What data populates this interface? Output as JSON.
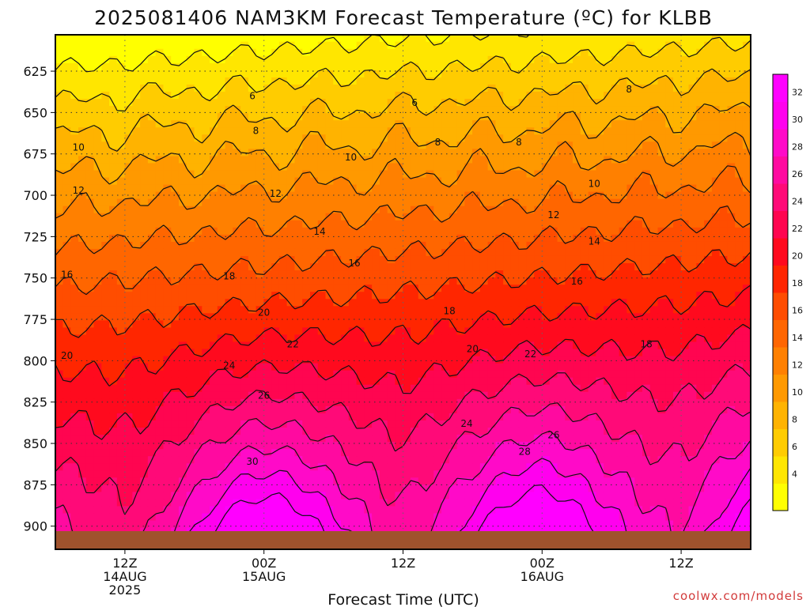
{
  "title": "2025081406 NAM3KM Forecast Temperature (ºC) for KLBB",
  "credit": "coolwx.com/models",
  "colors": {
    "ground": "#a0522d",
    "frame": "#000000",
    "grid": "#333333"
  },
  "chart_data": {
    "type": "contour",
    "title": "2025081406 NAM3KM Forecast Temperature (ºC) for KLBB",
    "xlabel": "Forecast Time (UTC)",
    "ylabel": "",
    "x_range_hours_from_start": [
      0,
      60
    ],
    "y_axis": {
      "scale": "pressure (hPa), increasing downward",
      "range": [
        603,
        914
      ],
      "ticks": [
        "625",
        "650",
        "675",
        "700",
        "725",
        "750",
        "775",
        "800",
        "825",
        "850",
        "875",
        "900"
      ]
    },
    "x_ticks": [
      {
        "lines": [
          "12Z",
          "14AUG",
          "2025"
        ],
        "hour": 6
      },
      {
        "lines": [
          "00Z",
          "15AUG"
        ],
        "hour": 18
      },
      {
        "lines": [
          "12Z"
        ],
        "hour": 30
      },
      {
        "lines": [
          "00Z",
          "16AUG"
        ],
        "hour": 42
      },
      {
        "lines": [
          "12Z"
        ],
        "hour": 54
      }
    ],
    "colorbar": {
      "levels": [
        2,
        4,
        6,
        8,
        10,
        12,
        14,
        16,
        18,
        20,
        22,
        24,
        26,
        28,
        30,
        32,
        34
      ],
      "labels": [
        "4",
        "6",
        "8",
        "10",
        "12",
        "14",
        "16",
        "18",
        "20",
        "22",
        "24",
        "26",
        "28",
        "30",
        "32"
      ],
      "colors": [
        "#ffff00",
        "#ffe600",
        "#ffcc00",
        "#ffb300",
        "#ff9900",
        "#ff8000",
        "#ff6600",
        "#ff4d00",
        "#ff2600",
        "#ff0a1e",
        "#ff0550",
        "#ff0a78",
        "#ff0aa0",
        "#ff0ac8",
        "#ff00ee",
        "#ff00ff"
      ]
    },
    "contour_levels": [
      4,
      6,
      8,
      10,
      12,
      14,
      16,
      18,
      20,
      22,
      24,
      26,
      28,
      30,
      32
    ],
    "grid": true,
    "surface_pressure_hPa": 903,
    "contour_labels": [
      {
        "text": "6",
        "hour": 17.0,
        "p": 640
      },
      {
        "text": "6",
        "hour": 31.0,
        "p": 644
      },
      {
        "text": "8",
        "hour": 17.3,
        "p": 661
      },
      {
        "text": "8",
        "hour": 33.0,
        "p": 668
      },
      {
        "text": "8",
        "hour": 40.0,
        "p": 668
      },
      {
        "text": "8",
        "hour": 49.5,
        "p": 636
      },
      {
        "text": "10",
        "hour": 2.0,
        "p": 671
      },
      {
        "text": "10",
        "hour": 25.5,
        "p": 677
      },
      {
        "text": "10",
        "hour": 46.5,
        "p": 693
      },
      {
        "text": "12",
        "hour": 2.0,
        "p": 697
      },
      {
        "text": "12",
        "hour": 19.0,
        "p": 699
      },
      {
        "text": "12",
        "hour": 43.0,
        "p": 712
      },
      {
        "text": "14",
        "hour": 22.8,
        "p": 722
      },
      {
        "text": "14",
        "hour": 46.5,
        "p": 728
      },
      {
        "text": "16",
        "hour": 1.0,
        "p": 748
      },
      {
        "text": "16",
        "hour": 25.8,
        "p": 741
      },
      {
        "text": "16",
        "hour": 45.0,
        "p": 752
      },
      {
        "text": "18",
        "hour": 15.0,
        "p": 749
      },
      {
        "text": "18",
        "hour": 34.0,
        "p": 770
      },
      {
        "text": "18",
        "hour": 51.0,
        "p": 790
      },
      {
        "text": "20",
        "hour": 18.0,
        "p": 771
      },
      {
        "text": "20",
        "hour": 36.0,
        "p": 793
      },
      {
        "text": "20",
        "hour": 1.0,
        "p": 797
      },
      {
        "text": "22",
        "hour": 20.5,
        "p": 790
      },
      {
        "text": "22",
        "hour": 41.0,
        "p": 796
      },
      {
        "text": "24",
        "hour": 15.0,
        "p": 803
      },
      {
        "text": "24",
        "hour": 35.5,
        "p": 838
      },
      {
        "text": "26",
        "hour": 18.0,
        "p": 821
      },
      {
        "text": "26",
        "hour": 43.0,
        "p": 845
      },
      {
        "text": "28",
        "hour": 40.5,
        "p": 855
      },
      {
        "text": "30",
        "hour": 17.0,
        "p": 861
      }
    ]
  }
}
